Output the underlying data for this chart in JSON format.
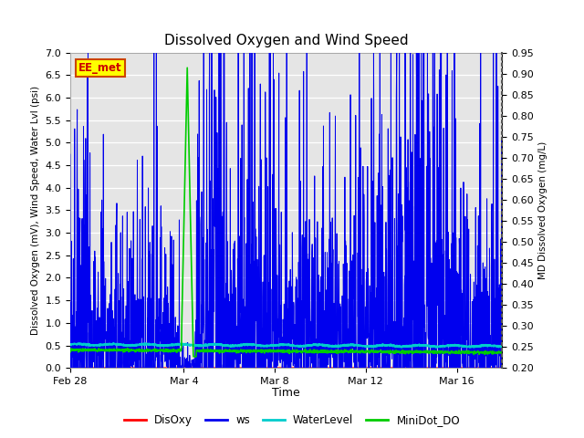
{
  "title": "Dissolved Oxygen and Wind Speed",
  "xlabel": "Time",
  "ylabel_left": "Dissolved Oxygen (mV), Wind Speed, Water Lvl (psi)",
  "ylabel_right": "MD Dissolved Oxygen (mg/L)",
  "ylim_left": [
    0.0,
    7.0
  ],
  "ylim_right": [
    0.2,
    0.95
  ],
  "background_color": "#e5e5e5",
  "fig_background": "#ffffff",
  "grid_color": "#ffffff",
  "label_box_text": "EE_met",
  "label_box_color": "#ffff00",
  "label_box_edge": "#cc4400",
  "colors": {
    "DisOxy": "#ff0000",
    "ws": "#0000ee",
    "WaterLevel": "#00cccc",
    "MiniDot_DO": "#00cc00"
  },
  "legend_labels": [
    "DisOxy",
    "ws",
    "WaterLevel",
    "MiniDot_DO"
  ],
  "xtick_labels": [
    "Feb 28",
    "Mar 4",
    "Mar 8",
    "Mar 12",
    "Mar 16"
  ],
  "xtick_positions": [
    0,
    5,
    9,
    13,
    17
  ],
  "left_yticks": [
    0.0,
    0.5,
    1.0,
    1.5,
    2.0,
    2.5,
    3.0,
    3.5,
    4.0,
    4.5,
    5.0,
    5.5,
    6.0,
    6.5,
    7.0
  ],
  "right_yticks": [
    0.2,
    0.25,
    0.3,
    0.35,
    0.4,
    0.45,
    0.5,
    0.55,
    0.6,
    0.65,
    0.7,
    0.75,
    0.8,
    0.85,
    0.9,
    0.95
  ],
  "n_days": 19,
  "n_points": 2000,
  "seed": 42
}
